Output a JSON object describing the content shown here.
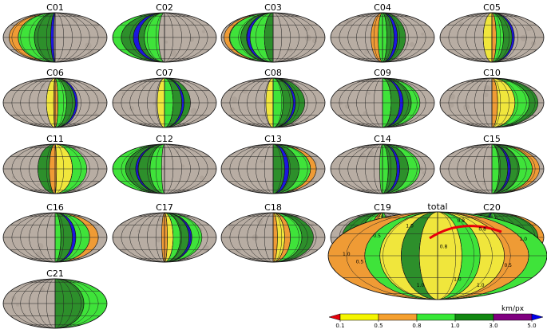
{
  "panels": [
    {
      "label": "C01",
      "zones": [
        {
          "c": "orange",
          "a": -160,
          "b": -128
        },
        {
          "c": "green",
          "a": -128,
          "b": -72
        },
        {
          "c": "dgreen",
          "a": -72,
          "b": -15
        },
        {
          "c": "blue",
          "a": -15,
          "b": -5
        }
      ]
    },
    {
      "label": "C02",
      "zones": [
        {
          "c": "green",
          "a": -180,
          "b": -150
        },
        {
          "c": "dgreen",
          "a": -150,
          "b": -108
        },
        {
          "c": "blue",
          "a": -108,
          "b": -90
        },
        {
          "c": "dgreen",
          "a": -90,
          "b": -70
        },
        {
          "c": "green",
          "a": -70,
          "b": -20
        }
      ]
    },
    {
      "label": "C03",
      "zones": [
        {
          "c": "orange",
          "a": -170,
          "b": -152
        },
        {
          "c": "green",
          "a": -152,
          "b": -112
        },
        {
          "c": "dgreen",
          "a": -112,
          "b": -92
        },
        {
          "c": "blue",
          "a": -92,
          "b": -80
        },
        {
          "c": "green",
          "a": -80,
          "b": -30
        },
        {
          "c": "dgreen",
          "a": -30,
          "b": 0
        }
      ]
    },
    {
      "label": "C04",
      "zones": [
        {
          "c": "orange",
          "a": -40,
          "b": -15
        },
        {
          "c": "green",
          "a": -15,
          "b": 15
        },
        {
          "c": "dgreen",
          "a": 15,
          "b": 40
        },
        {
          "c": "blue",
          "a": 40,
          "b": 52
        },
        {
          "c": "dgreen",
          "a": 52,
          "b": 80
        }
      ]
    },
    {
      "label": "C05",
      "zones": [
        {
          "c": "yellow",
          "a": -30,
          "b": 0
        },
        {
          "c": "orange",
          "a": 0,
          "b": 15
        },
        {
          "c": "green",
          "a": 15,
          "b": 40
        },
        {
          "c": "dgreen",
          "a": 40,
          "b": 70
        },
        {
          "c": "blue",
          "a": 70,
          "b": 78
        }
      ]
    },
    {
      "label": "C06",
      "zones": [
        {
          "c": "yellow",
          "a": -30,
          "b": -5
        },
        {
          "c": "orange",
          "a": -5,
          "b": 10
        },
        {
          "c": "green",
          "a": 10,
          "b": 40
        },
        {
          "c": "dgreen",
          "a": 40,
          "b": 70
        },
        {
          "c": "blue",
          "a": 70,
          "b": 78
        }
      ]
    },
    {
      "label": "C07",
      "zones": [
        {
          "c": "yellow",
          "a": -25,
          "b": 0
        },
        {
          "c": "green",
          "a": 0,
          "b": 30
        },
        {
          "c": "dgreen",
          "a": 30,
          "b": 60
        },
        {
          "c": "blue",
          "a": 60,
          "b": 68
        },
        {
          "c": "dgreen",
          "a": 68,
          "b": 90
        }
      ]
    },
    {
      "label": "C08",
      "zones": [
        {
          "c": "yellow",
          "a": -25,
          "b": 0
        },
        {
          "c": "green",
          "a": 0,
          "b": 35
        },
        {
          "c": "dgreen",
          "a": 35,
          "b": 70
        },
        {
          "c": "blue",
          "a": 70,
          "b": 78
        },
        {
          "c": "dgreen",
          "a": 78,
          "b": 110
        }
      ]
    },
    {
      "label": "C09",
      "zones": [
        {
          "c": "green",
          "a": 0,
          "b": 30
        },
        {
          "c": "dgreen",
          "a": 30,
          "b": 60
        },
        {
          "c": "blue",
          "a": 60,
          "b": 72
        },
        {
          "c": "dgreen",
          "a": 72,
          "b": 100
        },
        {
          "c": "green",
          "a": 100,
          "b": 130
        }
      ]
    },
    {
      "label": "C10",
      "zones": [
        {
          "c": "orange",
          "a": 0,
          "b": 20
        },
        {
          "c": "yellow",
          "a": 20,
          "b": 80
        },
        {
          "c": "green",
          "a": 80,
          "b": 130
        },
        {
          "c": "dgreen",
          "a": 130,
          "b": 160
        }
      ]
    },
    {
      "label": "C11",
      "zones": [
        {
          "c": "dgreen",
          "a": -60,
          "b": -20
        },
        {
          "c": "orange",
          "a": -20,
          "b": 5
        },
        {
          "c": "yellow",
          "a": 5,
          "b": 60
        },
        {
          "c": "green",
          "a": 60,
          "b": 110
        }
      ]
    },
    {
      "label": "C12",
      "zones": [
        {
          "c": "green",
          "a": -180,
          "b": -135
        },
        {
          "c": "dgreen",
          "a": -135,
          "b": -100
        },
        {
          "c": "blue",
          "a": -100,
          "b": -92
        },
        {
          "c": "dgreen",
          "a": -92,
          "b": -50
        },
        {
          "c": "green",
          "a": -50,
          "b": -10
        }
      ]
    },
    {
      "label": "C13",
      "zones": [
        {
          "c": "dgreen",
          "a": 0,
          "b": 40
        },
        {
          "c": "blue",
          "a": 40,
          "b": 55
        },
        {
          "c": "dgreen",
          "a": 55,
          "b": 90
        },
        {
          "c": "green",
          "a": 90,
          "b": 130
        },
        {
          "c": "orange",
          "a": 130,
          "b": 150
        }
      ]
    },
    {
      "label": "C14",
      "zones": [
        {
          "c": "green",
          "a": -10,
          "b": 20
        },
        {
          "c": "dgreen",
          "a": 20,
          "b": 50
        },
        {
          "c": "blue",
          "a": 50,
          "b": 60
        },
        {
          "c": "dgreen",
          "a": 60,
          "b": 90
        },
        {
          "c": "green",
          "a": 90,
          "b": 130
        }
      ]
    },
    {
      "label": "C15",
      "zones": [
        {
          "c": "green",
          "a": 0,
          "b": 25
        },
        {
          "c": "dgreen",
          "a": 25,
          "b": 55
        },
        {
          "c": "blue",
          "a": 55,
          "b": 65
        },
        {
          "c": "dgreen",
          "a": 65,
          "b": 95
        },
        {
          "c": "green",
          "a": 95,
          "b": 140
        },
        {
          "c": "orange",
          "a": 140,
          "b": 165
        }
      ]
    },
    {
      "label": "C16",
      "zones": [
        {
          "c": "green",
          "a": 0,
          "b": 20
        },
        {
          "c": "dgreen",
          "a": 20,
          "b": 60
        },
        {
          "c": "blue",
          "a": 60,
          "b": 72
        },
        {
          "c": "green",
          "a": 72,
          "b": 120
        },
        {
          "c": "orange",
          "a": 120,
          "b": 150
        }
      ]
    },
    {
      "label": "C17",
      "zones": [
        {
          "c": "orange",
          "a": -10,
          "b": 10
        },
        {
          "c": "yellow",
          "a": 10,
          "b": 30
        },
        {
          "c": "green",
          "a": 30,
          "b": 55
        },
        {
          "c": "dgreen",
          "a": 55,
          "b": 85
        },
        {
          "c": "blue",
          "a": 85,
          "b": 95
        },
        {
          "c": "green",
          "a": 95,
          "b": 130
        }
      ]
    },
    {
      "label": "C18",
      "zones": [
        {
          "c": "orange",
          "a": 0,
          "b": 15
        },
        {
          "c": "yellow",
          "a": 15,
          "b": 40
        },
        {
          "c": "orange",
          "a": 40,
          "b": 60
        },
        {
          "c": "green",
          "a": 60,
          "b": 100
        },
        {
          "c": "dgreen",
          "a": 100,
          "b": 140
        }
      ]
    },
    {
      "label": "C19",
      "zones": [
        {
          "c": "dgreen",
          "a": -140,
          "b": -75
        },
        {
          "c": "green",
          "a": -75,
          "b": -40
        },
        {
          "c": "orange",
          "a": -40,
          "b": -20
        },
        {
          "c": "yellow",
          "a": -20,
          "b": -5
        },
        {
          "c": "green",
          "a": -5,
          "b": 20
        }
      ]
    },
    {
      "label": "C20",
      "zones": [
        {
          "c": "orange",
          "a": -180,
          "b": -160
        },
        {
          "c": "green",
          "a": -160,
          "b": -110
        },
        {
          "c": "dgreen",
          "a": -110,
          "b": -20
        },
        {
          "c": "blue",
          "a": -20,
          "b": -10
        },
        {
          "c": "green",
          "a": -10,
          "b": 20
        },
        {
          "c": "dgreen",
          "a": 20,
          "b": 160
        },
        {
          "c": "orange",
          "a": 160,
          "b": 180
        }
      ]
    },
    {
      "label": "C21",
      "zones": [
        {
          "c": "dgreen",
          "a": 0,
          "b": 100
        },
        {
          "c": "green",
          "a": 100,
          "b": 180
        }
      ]
    }
  ],
  "total": {
    "label": "total",
    "contour_labels": [
      "0.5",
      "0.5",
      "0.5",
      "1.0",
      "1.0",
      "1.0",
      "1.0",
      "0.8",
      "0.8",
      "1.0",
      "0.8",
      "1.0"
    ]
  },
  "colorbar": {
    "unit": "km/px",
    "ticks": [
      "0.1",
      "0.5",
      "0.8",
      "1.0",
      "3.0",
      "5.0"
    ],
    "colors": [
      "#e8000b",
      "#f5f500",
      "#f5a030",
      "#38e838",
      "#118811",
      "#800080",
      "#0000ee"
    ]
  },
  "colors": {
    "base": "#b8ada3",
    "orange": "#ef9b35",
    "yellow": "#f0e63c",
    "green": "#3fe33a",
    "dgreen": "#2d8f2b",
    "blue": "#1c16e0",
    "red": "#e8000b",
    "purple": "#800080"
  }
}
